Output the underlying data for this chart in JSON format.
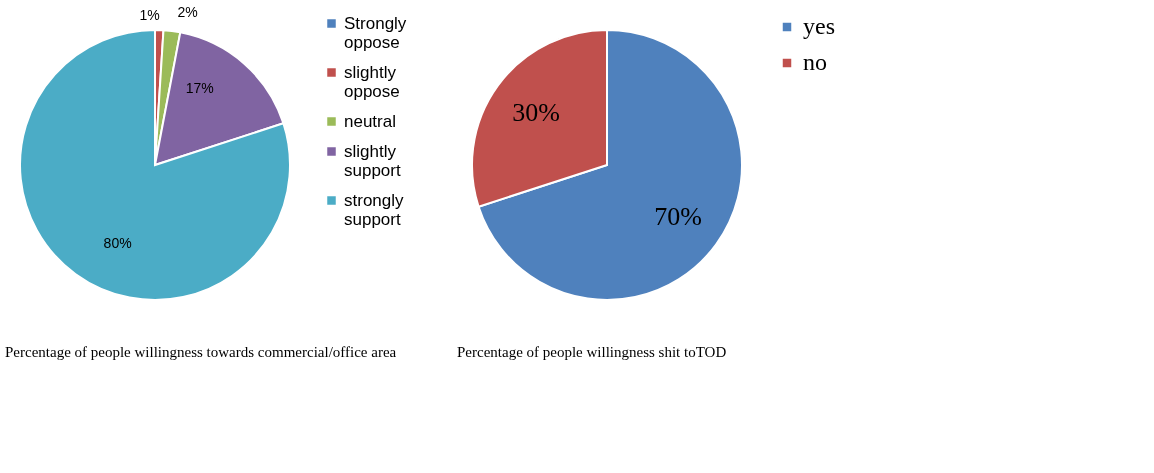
{
  "chart_data": [
    {
      "type": "pie",
      "categories": [
        "Strongly oppose",
        "slightly oppose",
        "neutral",
        "slightly support",
        "strongly support"
      ],
      "values": [
        0,
        1,
        2,
        17,
        80
      ],
      "value_labels": [
        null,
        "1%",
        "2%",
        "17%",
        "80%"
      ],
      "colors": [
        "#4f81bd",
        "#c0504d",
        "#9bbb59",
        "#8064a2",
        "#4bacc6"
      ],
      "legend": "right",
      "annotations": [
        "Percentage of people willingness towards commercial/office area"
      ]
    },
    {
      "type": "pie",
      "categories": [
        "yes",
        "no"
      ],
      "values": [
        70,
        30
      ],
      "value_labels": [
        "70%",
        "30%"
      ],
      "colors": [
        "#4f81bd",
        "#c0504d"
      ],
      "legend": "right",
      "annotations": [
        "Percentage of people willingness shit toTOD"
      ]
    }
  ]
}
